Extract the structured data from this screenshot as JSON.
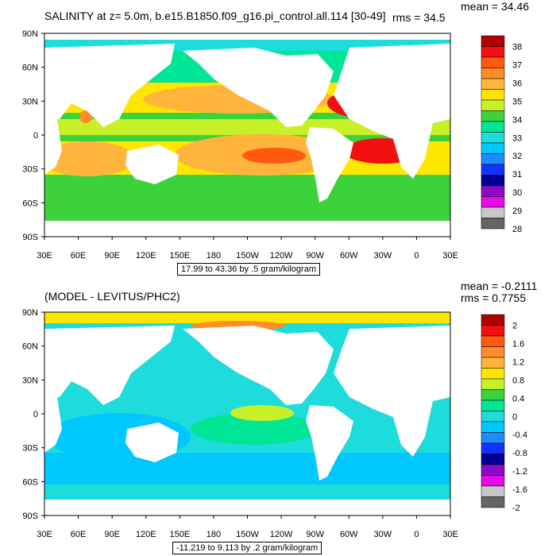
{
  "panels": [
    {
      "title": "SALINITY at z=   5.0m, b.e15.B1850.f09_g16.pi_control.all.114 [30-49]",
      "mean_text": "mean = 34.46",
      "rms_text": "rms = 34.5",
      "contour_info": "17.99 to 43.36 by .5 gram/kilogram",
      "lat_labels": [
        "90N",
        "60N",
        "30N",
        "0",
        "30S",
        "60S",
        "90S"
      ],
      "lon_labels": [
        "30E",
        "60E",
        "90E",
        "120E",
        "150E",
        "180",
        "150W",
        "120W",
        "90W",
        "60W",
        "30W",
        "0",
        "30E"
      ],
      "colorbar": {
        "labels": [
          "38",
          "37",
          "36",
          "35",
          "34",
          "33",
          "32",
          "31",
          "30",
          "29",
          "28"
        ],
        "colors": [
          "#b10000",
          "#f01010",
          "#ff5a10",
          "#ff8c28",
          "#ffb43c",
          "#ffe600",
          "#c8f028",
          "#3cd23c",
          "#00e696",
          "#1edcdc",
          "#00c8ff",
          "#1e8cff",
          "#1432ff",
          "#000096",
          "#8c0ac8",
          "#e60ae6",
          "#c8c8c8",
          "#646464"
        ]
      }
    },
    {
      "title": "(MODEL - LEVITUS/PHC2)",
      "mean_text": "mean = -0.2111",
      "rms_text": "rms = 0.7755",
      "contour_info": "-11.219 to 9.113 by .2 gram/kilogram",
      "lat_labels": [
        "90N",
        "60N",
        "30N",
        "0",
        "30S",
        "60S",
        "90S"
      ],
      "lon_labels": [
        "30E",
        "60E",
        "90E",
        "120E",
        "150E",
        "180",
        "150W",
        "120W",
        "90W",
        "60W",
        "30W",
        "0",
        "30E"
      ],
      "colorbar": {
        "labels": [
          "2",
          "1.6",
          "1.2",
          "0.8",
          "0.4",
          "0",
          "-0.4",
          "-0.8",
          "-1.2",
          "-1.6",
          "-2"
        ],
        "colors": [
          "#b10000",
          "#f01010",
          "#ff5a10",
          "#ff8c28",
          "#ffb43c",
          "#ffe600",
          "#c8f028",
          "#3cd23c",
          "#00e696",
          "#1edcdc",
          "#00c8ff",
          "#1e8cff",
          "#1432ff",
          "#000096",
          "#8c0ac8",
          "#e60ae6",
          "#c8c8c8",
          "#646464"
        ]
      }
    }
  ]
}
